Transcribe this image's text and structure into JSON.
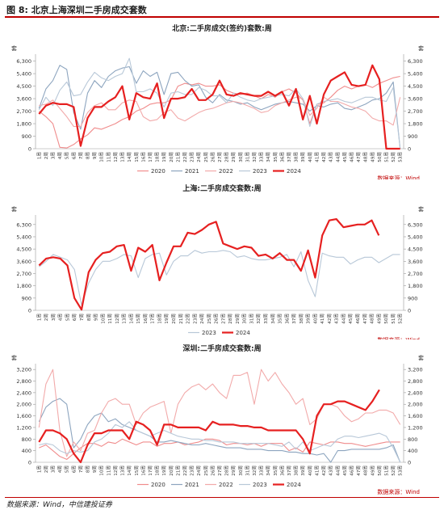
{
  "figure_title": "图 8: 北京上海深圳二手房成交套数",
  "footer_text": "数据来源：Wind，中信建投证券",
  "colors": {
    "2020": "#f08c8c",
    "2021": "#8da5bf",
    "2022": "#f2aaaa",
    "2023": "#b8c8d8",
    "2024": "#e62020"
  },
  "chart_data": [
    {
      "type": "line",
      "title": "北京:二手房成交(签约)套数:周",
      "y_unit_left": "套",
      "y_unit_right": "套",
      "yticks": [
        "0",
        "900",
        "1,800",
        "2,700",
        "3,600",
        "4,500",
        "5,400",
        "6,300"
      ],
      "ylim": [
        0,
        6800
      ],
      "xticks": [
        "1周",
        "2周",
        "3周",
        "4周",
        "5周",
        "6周",
        "7周",
        "8周",
        "9周",
        "10周",
        "11周",
        "12周",
        "13周",
        "14周",
        "15周",
        "16周",
        "17周",
        "18周",
        "19周",
        "20周",
        "21周",
        "22周",
        "23周",
        "24周",
        "25周",
        "26周",
        "27周",
        "28周",
        "29周",
        "30周",
        "31周",
        "32周",
        "33周",
        "34周",
        "35周",
        "36周",
        "37周",
        "38周",
        "39周",
        "40周",
        "41周",
        "42周",
        "43周",
        "44周",
        "45周",
        "46周",
        "47周",
        "48周",
        "49周",
        "50周",
        "51周",
        "52周",
        "53周"
      ],
      "source": "数据来源：Wind",
      "legend": "bottom",
      "series": [
        {
          "name": "2020",
          "values": [
            2700,
            2300,
            1800,
            100,
            50,
            300,
            700,
            1000,
            1500,
            1400,
            1600,
            1800,
            2100,
            2300,
            2700,
            2900,
            3200,
            3300,
            3300,
            3500,
            4500,
            4700,
            4600,
            4700,
            4500,
            4500,
            4600,
            4200,
            4000,
            3900,
            4000,
            3800,
            3600,
            3900,
            3700,
            4100,
            4300,
            4000,
            3500,
            1800,
            3200,
            3300,
            3700,
            4200,
            4500,
            4300,
            4500,
            4600,
            4400,
            4700,
            4900,
            5100,
            5200
          ]
        },
        {
          "name": "2021",
          "values": [
            2900,
            4300,
            4900,
            6000,
            5700,
            2600,
            1400,
            4000,
            4900,
            4400,
            5200,
            5600,
            5800,
            5900,
            4700,
            5600,
            5200,
            5500,
            3900,
            5400,
            5500,
            4900,
            4500,
            4600,
            3700,
            3300,
            3900,
            3500,
            3400,
            3200,
            3300,
            3000,
            2800,
            3000,
            3200,
            3300,
            3400,
            3300,
            3200,
            2700,
            3100,
            3000,
            3200,
            3300,
            2900,
            2800,
            3000,
            3200,
            3500,
            3600,
            4000,
            4800,
            0
          ]
        },
        {
          "name": "2022",
          "values": [
            3100,
            3200,
            3500,
            2900,
            2300,
            1600,
            1600,
            2600,
            3100,
            3300,
            2800,
            2800,
            3300,
            3500,
            3400,
            2300,
            2000,
            2100,
            2600,
            2800,
            2200,
            2000,
            2300,
            2600,
            2800,
            2900,
            3100,
            3300,
            3400,
            3300,
            3100,
            2900,
            2600,
            2700,
            3100,
            3300,
            3500,
            3700,
            3600,
            2400,
            2900,
            3700,
            3400,
            3400,
            3200,
            3000,
            2900,
            2700,
            2200,
            2000,
            2000,
            1700,
            3700
          ]
        },
        {
          "name": "2023",
          "values": [
            2800,
            3700,
            3100,
            4200,
            4800,
            3800,
            3900,
            4800,
            5500,
            5100,
            4900,
            5200,
            5400,
            6500,
            4100,
            4100,
            4300,
            4000,
            3000,
            4000,
            4100,
            3900,
            3900,
            4400,
            4200,
            3800,
            3800,
            3300,
            4000,
            3700,
            3500,
            3400,
            3600,
            3700,
            3800,
            3900,
            3800,
            4300,
            3600,
            1600,
            3200,
            3400,
            3500,
            3600,
            3400,
            3300,
            3500,
            3700,
            3700,
            3500,
            3400,
            4400,
            0
          ]
        },
        {
          "name": "2024",
          "values": [
            2500,
            3100,
            3300,
            3200,
            3200,
            3000,
            200,
            2200,
            3000,
            3000,
            3400,
            3700,
            4500,
            2100,
            4000,
            3700,
            3600,
            4700,
            2200,
            3600,
            3600,
            3700,
            4300,
            3500,
            3500,
            3900,
            4900,
            3900,
            3800,
            4000,
            3900,
            3800,
            3800,
            4100,
            3800,
            4100,
            3100,
            4300,
            2100,
            3800,
            1800,
            3900,
            4900,
            5200,
            5500,
            4600,
            4500,
            4600,
            6000,
            5000,
            0,
            0,
            0
          ]
        }
      ]
    },
    {
      "type": "line",
      "title": "上海:二手房成交套数:周",
      "y_unit_left": "套",
      "y_unit_right": "套",
      "yticks": [
        "0",
        "900",
        "1,800",
        "2,700",
        "3,600",
        "4,500",
        "5,400",
        "6,300"
      ],
      "ylim": [
        0,
        7000
      ],
      "xticks": [
        "1周",
        "2周",
        "3周",
        "4周",
        "5周",
        "6周",
        "7周",
        "8周",
        "9周",
        "10周",
        "11周",
        "12周",
        "13周",
        "14周",
        "15周",
        "16周",
        "17周",
        "18周",
        "19周",
        "20周",
        "21周",
        "22周",
        "23周",
        "24周",
        "25周",
        "26周",
        "27周",
        "28周",
        "29周",
        "30周",
        "31周",
        "32周",
        "33周",
        "34周",
        "35周",
        "36周",
        "37周",
        "38周",
        "39周",
        "40周",
        "41周",
        "42周",
        "43周",
        "44周",
        "45周",
        "46周",
        "47周",
        "48周",
        "49周",
        "50周",
        "51周",
        "52周"
      ],
      "source": "数据来源：Wind",
      "legend": "bottom",
      "series": [
        {
          "name": "2023",
          "values": [
            3200,
            3600,
            4100,
            3900,
            3700,
            3000,
            400,
            2000,
            3000,
            3600,
            3600,
            3800,
            4100,
            4000,
            2400,
            3800,
            4100,
            4200,
            2600,
            3600,
            4000,
            4000,
            4400,
            4200,
            4300,
            4300,
            4400,
            4300,
            3900,
            4000,
            3800,
            3700,
            3700,
            3800,
            3900,
            4100,
            3200,
            4300,
            2200,
            1000,
            4200,
            4000,
            3900,
            3900,
            3400,
            3700,
            3900,
            3900,
            3500,
            3800,
            4100,
            4100
          ]
        },
        {
          "name": "2024",
          "values": [
            3300,
            3800,
            3900,
            3800,
            3300,
            900,
            50,
            2800,
            3700,
            4200,
            4300,
            4700,
            4800,
            2900,
            4600,
            4300,
            4800,
            2200,
            3500,
            4700,
            4700,
            5700,
            5600,
            5900,
            6300,
            6500,
            4900,
            4700,
            4500,
            4700,
            4600,
            4000,
            4100,
            3800,
            4200,
            3700,
            3700,
            2900,
            4400,
            2400,
            5500,
            6600,
            6700,
            6100,
            6200,
            6300,
            6300,
            6600,
            5500,
            null,
            null,
            null
          ]
        }
      ]
    },
    {
      "type": "line",
      "title": "深圳:二手房成交套数:周",
      "y_unit_left": "套",
      "y_unit_right": "套",
      "yticks": [
        "0",
        "400",
        "800",
        "1,200",
        "1,600",
        "2,000",
        "2,400",
        "2,800",
        "3,200"
      ],
      "ylim": [
        0,
        3400
      ],
      "xticks": [
        "1周",
        "2周",
        "3周",
        "4周",
        "5周",
        "6周",
        "7周",
        "8周",
        "9周",
        "10周",
        "11周",
        "12周",
        "13周",
        "14周",
        "15周",
        "16周",
        "17周",
        "18周",
        "19周",
        "20周",
        "21周",
        "22周",
        "23周",
        "24周",
        "25周",
        "26周",
        "27周",
        "28周",
        "29周",
        "30周",
        "31周",
        "32周",
        "33周",
        "34周",
        "35周",
        "36周",
        "37周",
        "38周",
        "39周",
        "40周",
        "41周",
        "42周",
        "43周",
        "44周",
        "45周",
        "46周",
        "47周",
        "48周",
        "49周",
        "50周",
        "51周",
        "52周",
        "53周"
      ],
      "source": "数据来源：Wind",
      "legend": "bottom",
      "series": [
        {
          "name": "2020",
          "values": [
            500,
            600,
            400,
            200,
            100,
            300,
            500,
            650,
            650,
            550,
            700,
            650,
            800,
            700,
            600,
            700,
            700,
            550,
            650,
            650,
            700,
            600,
            650,
            700,
            800,
            800,
            750,
            600,
            650,
            650,
            600,
            650,
            550,
            650,
            650,
            650,
            400,
            500,
            350,
            700,
            650,
            600,
            700,
            700,
            650,
            650,
            600,
            550,
            600,
            650,
            700,
            700,
            700
          ]
        },
        {
          "name": "2021",
          "values": [
            1400,
            1900,
            2100,
            2200,
            2000,
            500,
            800,
            1300,
            1600,
            1700,
            1400,
            1500,
            1300,
            1200,
            1100,
            1000,
            900,
            700,
            700,
            750,
            700,
            650,
            600,
            600,
            650,
            600,
            550,
            500,
            500,
            500,
            450,
            450,
            450,
            400,
            400,
            400,
            350,
            350,
            300,
            300,
            250,
            300,
            0,
            400,
            400,
            450,
            450,
            450,
            450,
            450,
            500,
            600,
            0
          ]
        },
        {
          "name": "2022",
          "values": [
            1200,
            2700,
            3200,
            1100,
            200,
            700,
            400,
            1000,
            1100,
            1700,
            2100,
            2200,
            2000,
            2000,
            1300,
            1700,
            1900,
            2000,
            2100,
            1000,
            2000,
            2400,
            2600,
            2700,
            2500,
            2700,
            2400,
            2200,
            3000,
            3000,
            3100,
            2000,
            3200,
            2800,
            3100,
            2700,
            2400,
            2000,
            2200,
            1300,
            1500,
            2000,
            2000,
            1900,
            1600,
            1400,
            1500,
            1700,
            1700,
            1800,
            1800,
            1700,
            1300
          ]
        },
        {
          "name": "2023",
          "values": [
            600,
            650,
            600,
            400,
            300,
            400,
            350,
            400,
            700,
            800,
            1000,
            1300,
            1200,
            1400,
            1100,
            1000,
            900,
            1000,
            1100,
            1000,
            900,
            850,
            800,
            800,
            750,
            750,
            700,
            700,
            700,
            650,
            650,
            650,
            650,
            650,
            600,
            550,
            700,
            450,
            700,
            400,
            500,
            600,
            550,
            800,
            900,
            900,
            850,
            900,
            950,
            1000,
            900,
            500,
            0
          ]
        },
        {
          "name": "2024",
          "values": [
            700,
            1100,
            1100,
            1000,
            800,
            300,
            0,
            600,
            1000,
            1000,
            1100,
            1100,
            1100,
            800,
            1400,
            1300,
            1100,
            600,
            1300,
            1300,
            1200,
            1200,
            1200,
            1200,
            1100,
            1400,
            1300,
            1300,
            1300,
            1250,
            1250,
            1200,
            1200,
            1100,
            1100,
            1100,
            1100,
            1100,
            800,
            300,
            1600,
            2000,
            2000,
            2100,
            2100,
            2000,
            1900,
            1800,
            2100,
            2500,
            null,
            null,
            null
          ]
        }
      ]
    }
  ]
}
